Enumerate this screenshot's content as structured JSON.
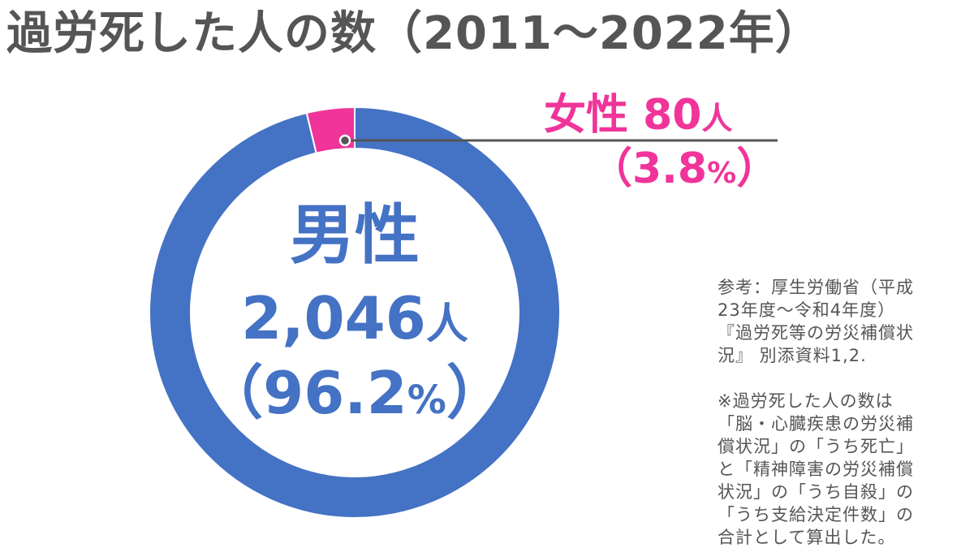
{
  "title": "過労死した人の数（2011～2022年）",
  "chart_data": {
    "type": "pie",
    "donut": true,
    "title": "過労死した人の数（2011～2022年）",
    "categories": [
      "男性",
      "女性"
    ],
    "values": [
      2046,
      80
    ],
    "percentages": [
      96.2,
      3.8
    ],
    "colors": [
      "#4472C4",
      "#F0349A"
    ]
  },
  "labels": {
    "male_name": "男性",
    "male_value": "2,046",
    "male_unit": "人",
    "male_pct_open": "（96.2",
    "male_pct_sign": "%",
    "male_pct_close": "）",
    "female_name": "女性 80",
    "female_unit": "人",
    "female_pct_open": "（3.8",
    "female_pct_sign": "%",
    "female_pct_close": "）"
  },
  "source_notes": [
    "参考：厚生労働省（平成",
    "23年度～令和4年度）",
    "『過労死等の労災補償状",
    "況』 別添資料1,2.",
    "",
    "※過労死した人の数は",
    "「脳・心臓疾患の労災補",
    "償状況」の「うち死亡」",
    "と「精神障害の労災補償",
    "状況」の「うち自殺」の",
    "「うち支給決定件数」の",
    "合計として算出した。"
  ]
}
